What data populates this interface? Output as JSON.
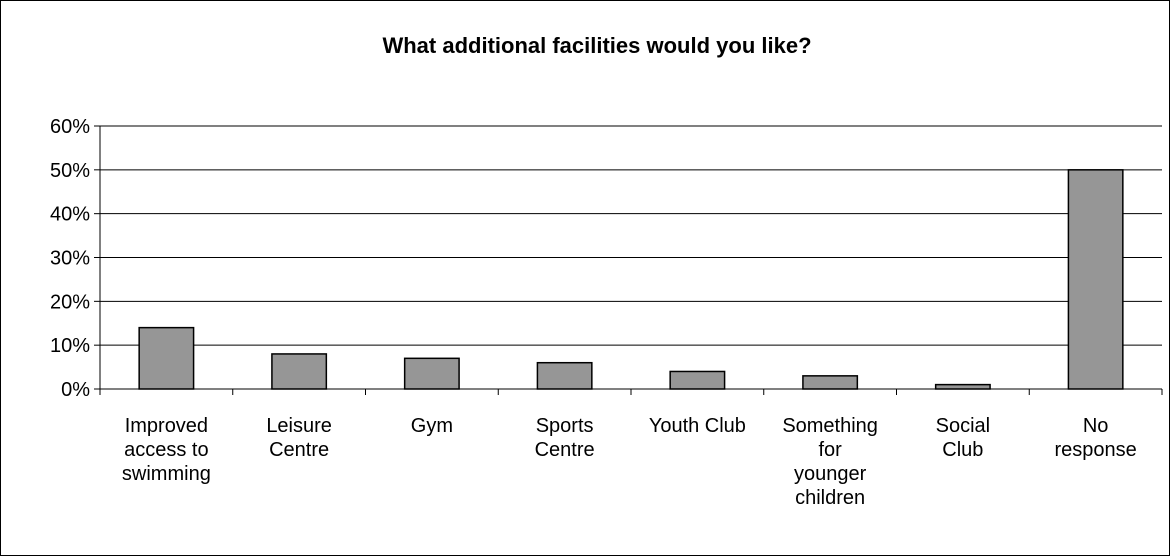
{
  "chart_data": {
    "type": "bar",
    "title": "What additional facilities would you like?",
    "xlabel": "",
    "ylabel": "",
    "categories": [
      [
        "Improved",
        "access to",
        "swimming"
      ],
      [
        "Leisure",
        "Centre"
      ],
      [
        "Gym"
      ],
      [
        "Sports",
        "Centre"
      ],
      [
        "Youth Club"
      ],
      [
        "Something",
        "for",
        "younger",
        "children"
      ],
      [
        "Social",
        "Club"
      ],
      [
        "No",
        "response"
      ]
    ],
    "values": [
      14,
      8,
      7,
      6,
      4,
      3,
      1,
      50
    ],
    "value_unit": "%",
    "ylim": [
      0,
      60
    ],
    "yticks": [
      "0%",
      "10%",
      "20%",
      "30%",
      "40%",
      "50%",
      "60%"
    ],
    "grid": true,
    "legend": "none",
    "colors": {
      "bar_fill": "#969696",
      "bar_stroke": "#000000",
      "grid": "#000000",
      "axis": "#000000"
    }
  }
}
